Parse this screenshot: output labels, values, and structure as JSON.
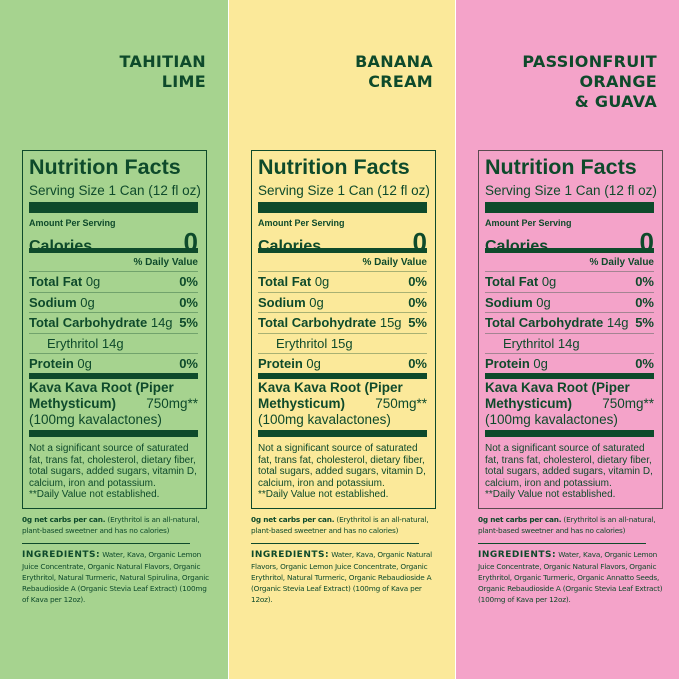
{
  "panels": [
    {
      "flavor": "TAHITIAN\nLIME",
      "bg": "#a6d38f",
      "border": "#0e4a2b",
      "title": "Nutrition Facts",
      "serving": "Serving Size 1 Can (12 fl oz)",
      "amount_per_serving": "Amount Per Serving",
      "calories_label": "Calories",
      "calories": "0",
      "daily_value": "% Daily Value",
      "total_fat": "Total Fat",
      "total_fat_amt": "0g",
      "total_fat_dv": "0%",
      "sodium": "Sodium",
      "sodium_amt": "0g",
      "sodium_dv": "0%",
      "carb": "Total Carbohydrate",
      "carb_amt": "14g",
      "carb_dv": "5%",
      "erythritol": "Erythritol 14g",
      "protein": "Protein",
      "protein_amt": "0g",
      "protein_dv": "0%",
      "kava_line1": "Kava Kava Root (Piper",
      "kava_line2": "Methysticum)",
      "kava_amt": "750mg**",
      "kava_line3": "(100mg kavalactones)",
      "not_significant": "Not a significant source of saturated fat, trans fat, cholesterol, dietary fiber, total sugars, added sugars, vitamin D, calcium, iron and potassium.",
      "dv_note": "**Daily Value not established.",
      "net_carbs_bold": "0g net carbs per can.",
      "net_carbs_text": " (Erythritol is an all-natural, plant-based sweetner and has no calories)",
      "ingredients_label": "INGREDIENTS:",
      "ingredients": " Water, Kava, Organic Lemon Juice Concentrate, Organic Natural Flavors, Organic Erythritol, Natural Turmeric, Natural Spirulina, Organic Rebaudioside A (Organic Stevia Leaf Extract) (100mg of Kava per 12oz)."
    },
    {
      "flavor": "BANANA\nCREAM",
      "bg": "#fbe99a",
      "border": "#0e4a2b",
      "title": "Nutrition Facts",
      "serving": "Serving Size 1 Can (12 fl oz)",
      "amount_per_serving": "Amount Per Serving",
      "calories_label": "Calories",
      "calories": "0",
      "daily_value": "% Daily Value",
      "total_fat": "Total Fat",
      "total_fat_amt": "0g",
      "total_fat_dv": "0%",
      "sodium": "Sodium",
      "sodium_amt": "0g",
      "sodium_dv": "0%",
      "carb": "Total Carbohydrate",
      "carb_amt": "15g",
      "carb_dv": "5%",
      "erythritol": "Erythritol 15g",
      "protein": "Protein",
      "protein_amt": "0g",
      "protein_dv": "0%",
      "kava_line1": "Kava Kava Root (Piper",
      "kava_line2": "Methysticum)",
      "kava_amt": "750mg**",
      "kava_line3": "(100mg kavalactones)",
      "not_significant": "Not a significant source of saturated fat, trans fat, cholesterol, dietary fiber, total sugars, added sugars, vitamin D, calcium, iron and potassium.",
      "dv_note": "**Daily Value not established.",
      "net_carbs_bold": "0g net carbs per can.",
      "net_carbs_text": " (Erythritol is an all-natural, plant-based sweetner and has no calories)",
      "ingredients_label": "INGREDIENTS:",
      "ingredients": " Water, Kava, Organic Natural Flavors, Organic Lemon Juice Concentrate, Organic Erythritol, Natural Turmeric, Organic Rebaudioside A (Organic Stevia Leaf Extract) (100mg of Kava per 12oz)."
    },
    {
      "flavor": "PASSIONFRUIT\nORANGE\n& GUAVA",
      "bg": "#f4a3c9",
      "border": "#5a4a50",
      "title": "Nutrition Facts",
      "serving": "Serving Size 1 Can (12 fl oz)",
      "amount_per_serving": "Amount Per Serving",
      "calories_label": "Calories",
      "calories": "0",
      "daily_value": "% Daily Value",
      "total_fat": "Total Fat",
      "total_fat_amt": "0g",
      "total_fat_dv": "0%",
      "sodium": "Sodium",
      "sodium_amt": "0g",
      "sodium_dv": "0%",
      "carb": "Total Carbohydrate",
      "carb_amt": "14g",
      "carb_dv": "5%",
      "erythritol": "Erythritol 14g",
      "protein": "Protein",
      "protein_amt": "0g",
      "protein_dv": "0%",
      "kava_line1": "Kava Kava Root (Piper",
      "kava_line2": "Methysticum)",
      "kava_amt": "750mg**",
      "kava_line3": "(100mg kavalactones)",
      "not_significant": "Not a significant source of saturated fat, trans fat, cholesterol, dietary fiber, total sugars, added sugars, vitamin D, calcium, iron and potassium.",
      "dv_note": "**Daily Value not established.",
      "net_carbs_bold": "0g net carbs per can.",
      "net_carbs_text": " (Erythritol is an all-natural, plant-based sweetner and has no calories)",
      "ingredients_label": "INGREDIENTS:",
      "ingredients": " Water, Kava, Organic Lemon Juice Concentrate, Organic Natural Flavors, Organic Erythritol, Organic Turmeric, Organic Annatto Seeds, Organic Rebaudioside A (Organic Stevia Leaf Extract) (100mg of Kava per 12oz)."
    }
  ]
}
